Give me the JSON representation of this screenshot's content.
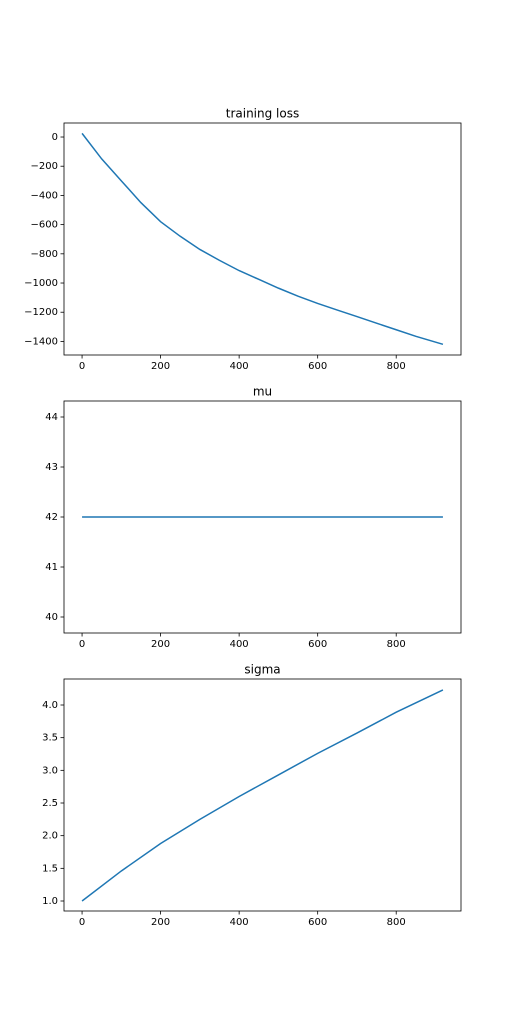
{
  "chart_data": [
    {
      "type": "line",
      "title": "training loss",
      "x": [
        0,
        50,
        100,
        150,
        200,
        250,
        300,
        350,
        400,
        450,
        500,
        550,
        600,
        650,
        700,
        750,
        800,
        850,
        919
      ],
      "series": [
        {
          "color": "#1f77b4",
          "values": [
            25,
            -150,
            -300,
            -450,
            -580,
            -680,
            -770,
            -845,
            -915,
            -975,
            -1035,
            -1090,
            -1140,
            -1185,
            -1230,
            -1275,
            -1320,
            -1365,
            -1420
          ]
        }
      ],
      "xlim": [
        -46,
        965
      ],
      "xticks": [
        0,
        200,
        400,
        600,
        800
      ],
      "ylim": [
        -1493,
        96
      ],
      "yticks": [
        0,
        {
          "value": -200,
          "label": "−200"
        },
        {
          "value": -400,
          "label": "−400"
        },
        {
          "value": -600,
          "label": "−600"
        },
        {
          "value": -800,
          "label": "−800"
        },
        {
          "value": -1000,
          "label": "−1000"
        },
        {
          "value": -1200,
          "label": "−1200"
        },
        {
          "value": -1400,
          "label": "−1400"
        }
      ]
    },
    {
      "type": "line",
      "title": "mu",
      "x": [
        0,
        919
      ],
      "series": [
        {
          "color": "#1f77b4",
          "values": [
            42,
            42
          ]
        }
      ],
      "xlim": [
        -46,
        965
      ],
      "xticks": [
        0,
        200,
        400,
        600,
        800
      ],
      "ylim": [
        39.68,
        44.32
      ],
      "yticks": [
        40,
        41,
        42,
        43,
        44
      ]
    },
    {
      "type": "line",
      "title": "sigma",
      "x": [
        0,
        100,
        200,
        300,
        400,
        500,
        600,
        700,
        800,
        919
      ],
      "series": [
        {
          "color": "#1f77b4",
          "values": [
            1.0,
            1.46,
            1.88,
            2.25,
            2.6,
            2.93,
            3.26,
            3.57,
            3.89,
            4.23
          ]
        }
      ],
      "xlim": [
        -46,
        965
      ],
      "xticks": [
        0,
        200,
        400,
        600,
        800
      ],
      "ylim": [
        0.847,
        4.398
      ],
      "yticks": [
        {
          "value": 1,
          "label": "1.0"
        },
        1.5,
        {
          "value": 2,
          "label": "2.0"
        },
        2.5,
        {
          "value": 3,
          "label": "3.0"
        },
        3.5,
        {
          "value": 4,
          "label": "4.0"
        }
      ]
    }
  ]
}
